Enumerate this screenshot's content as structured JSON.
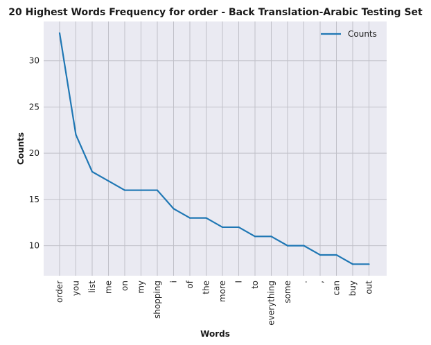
{
  "chart_data": {
    "type": "line",
    "title": "20 Highest Words Frequency for order - Back Translation-Arabic Testing Set",
    "xlabel": "Words",
    "ylabel": "Counts",
    "categories": [
      "order",
      "you",
      "list",
      "me",
      "on",
      "my",
      "shopping",
      "i",
      "of",
      "the",
      "more",
      "I",
      "to",
      "everything",
      "some",
      ".",
      ",",
      "can",
      "buy",
      "out"
    ],
    "series": [
      {
        "name": "Counts",
        "values": [
          33,
          22,
          18,
          17,
          16,
          16,
          16,
          14,
          13,
          13,
          12,
          12,
          11,
          11,
          10,
          10,
          9,
          9,
          8,
          8
        ],
        "color": "#1f77b4"
      }
    ],
    "ylim": [
      6.75,
      34.25
    ],
    "yticks": [
      10,
      15,
      20,
      25,
      30
    ],
    "grid": true,
    "legend_position": "top-right",
    "background_color": "#eaeaf2",
    "grid_color": "#c0c0c8"
  }
}
